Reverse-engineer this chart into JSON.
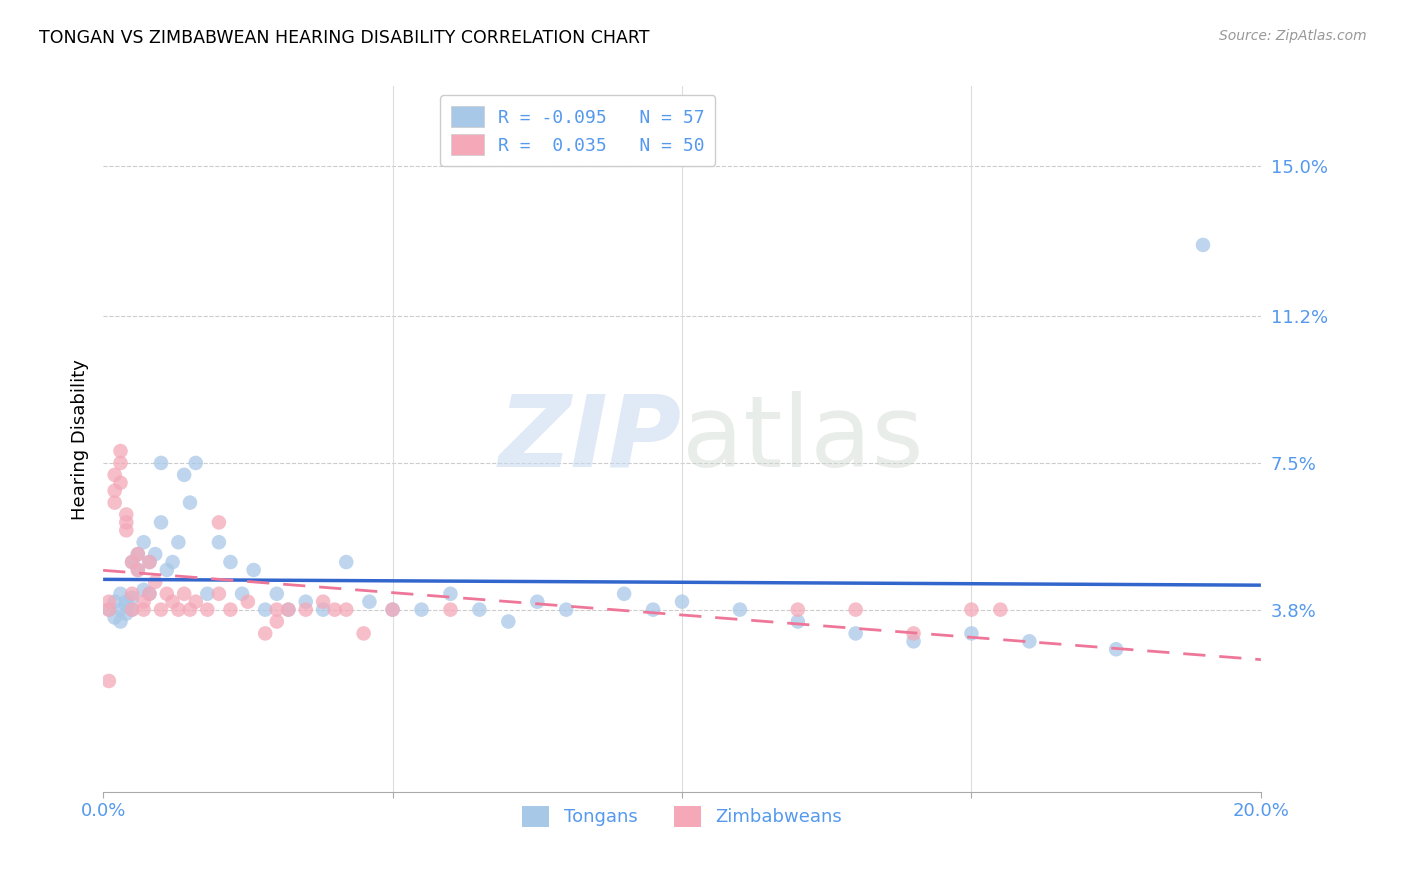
{
  "title": "TONGAN VS ZIMBABWEAN HEARING DISABILITY CORRELATION CHART",
  "source": "Source: ZipAtlas.com",
  "ylabel": "Hearing Disability",
  "ytick_labels": [
    "3.8%",
    "7.5%",
    "11.2%",
    "15.0%"
  ],
  "ytick_values": [
    0.038,
    0.075,
    0.112,
    0.15
  ],
  "xlim": [
    0.0,
    0.2
  ],
  "ylim": [
    -0.008,
    0.17
  ],
  "tongan_R": -0.095,
  "tongan_N": 57,
  "zimbabwean_R": 0.035,
  "zimbabwean_N": 50,
  "tongan_color": "#A8C8E8",
  "zimbabwean_color": "#F4A8B8",
  "tongan_line_color": "#3366CC",
  "zimbabwean_line_color": "#EE7799",
  "watermark_zip": "ZIP",
  "watermark_atlas": "atlas",
  "tongan_x": [
    0.001,
    0.002,
    0.002,
    0.003,
    0.003,
    0.003,
    0.004,
    0.004,
    0.004,
    0.005,
    0.005,
    0.005,
    0.006,
    0.006,
    0.007,
    0.007,
    0.008,
    0.008,
    0.009,
    0.01,
    0.01,
    0.011,
    0.012,
    0.013,
    0.014,
    0.015,
    0.016,
    0.018,
    0.02,
    0.022,
    0.024,
    0.026,
    0.028,
    0.03,
    0.032,
    0.035,
    0.038,
    0.042,
    0.046,
    0.05,
    0.055,
    0.06,
    0.065,
    0.07,
    0.075,
    0.08,
    0.09,
    0.095,
    0.1,
    0.11,
    0.12,
    0.13,
    0.14,
    0.15,
    0.16,
    0.175,
    0.19
  ],
  "tongan_y": [
    0.038,
    0.04,
    0.036,
    0.042,
    0.035,
    0.038,
    0.039,
    0.04,
    0.037,
    0.041,
    0.038,
    0.05,
    0.048,
    0.052,
    0.043,
    0.055,
    0.042,
    0.05,
    0.052,
    0.06,
    0.075,
    0.048,
    0.05,
    0.055,
    0.072,
    0.065,
    0.075,
    0.042,
    0.055,
    0.05,
    0.042,
    0.048,
    0.038,
    0.042,
    0.038,
    0.04,
    0.038,
    0.05,
    0.04,
    0.038,
    0.038,
    0.042,
    0.038,
    0.035,
    0.04,
    0.038,
    0.042,
    0.038,
    0.04,
    0.038,
    0.035,
    0.032,
    0.03,
    0.032,
    0.03,
    0.028,
    0.13
  ],
  "zimbabwean_x": [
    0.001,
    0.001,
    0.002,
    0.002,
    0.002,
    0.003,
    0.003,
    0.003,
    0.004,
    0.004,
    0.004,
    0.005,
    0.005,
    0.005,
    0.006,
    0.006,
    0.007,
    0.007,
    0.008,
    0.008,
    0.009,
    0.01,
    0.011,
    0.012,
    0.013,
    0.014,
    0.015,
    0.016,
    0.018,
    0.02,
    0.022,
    0.025,
    0.028,
    0.03,
    0.032,
    0.035,
    0.038,
    0.042,
    0.02,
    0.03,
    0.04,
    0.045,
    0.05,
    0.06,
    0.12,
    0.13,
    0.14,
    0.15,
    0.155,
    0.001
  ],
  "zimbabwean_y": [
    0.038,
    0.04,
    0.072,
    0.068,
    0.065,
    0.075,
    0.07,
    0.078,
    0.06,
    0.062,
    0.058,
    0.042,
    0.038,
    0.05,
    0.048,
    0.052,
    0.04,
    0.038,
    0.042,
    0.05,
    0.045,
    0.038,
    0.042,
    0.04,
    0.038,
    0.042,
    0.038,
    0.04,
    0.038,
    0.042,
    0.038,
    0.04,
    0.032,
    0.035,
    0.038,
    0.038,
    0.04,
    0.038,
    0.06,
    0.038,
    0.038,
    0.032,
    0.038,
    0.038,
    0.038,
    0.038,
    0.032,
    0.038,
    0.038,
    0.02
  ]
}
